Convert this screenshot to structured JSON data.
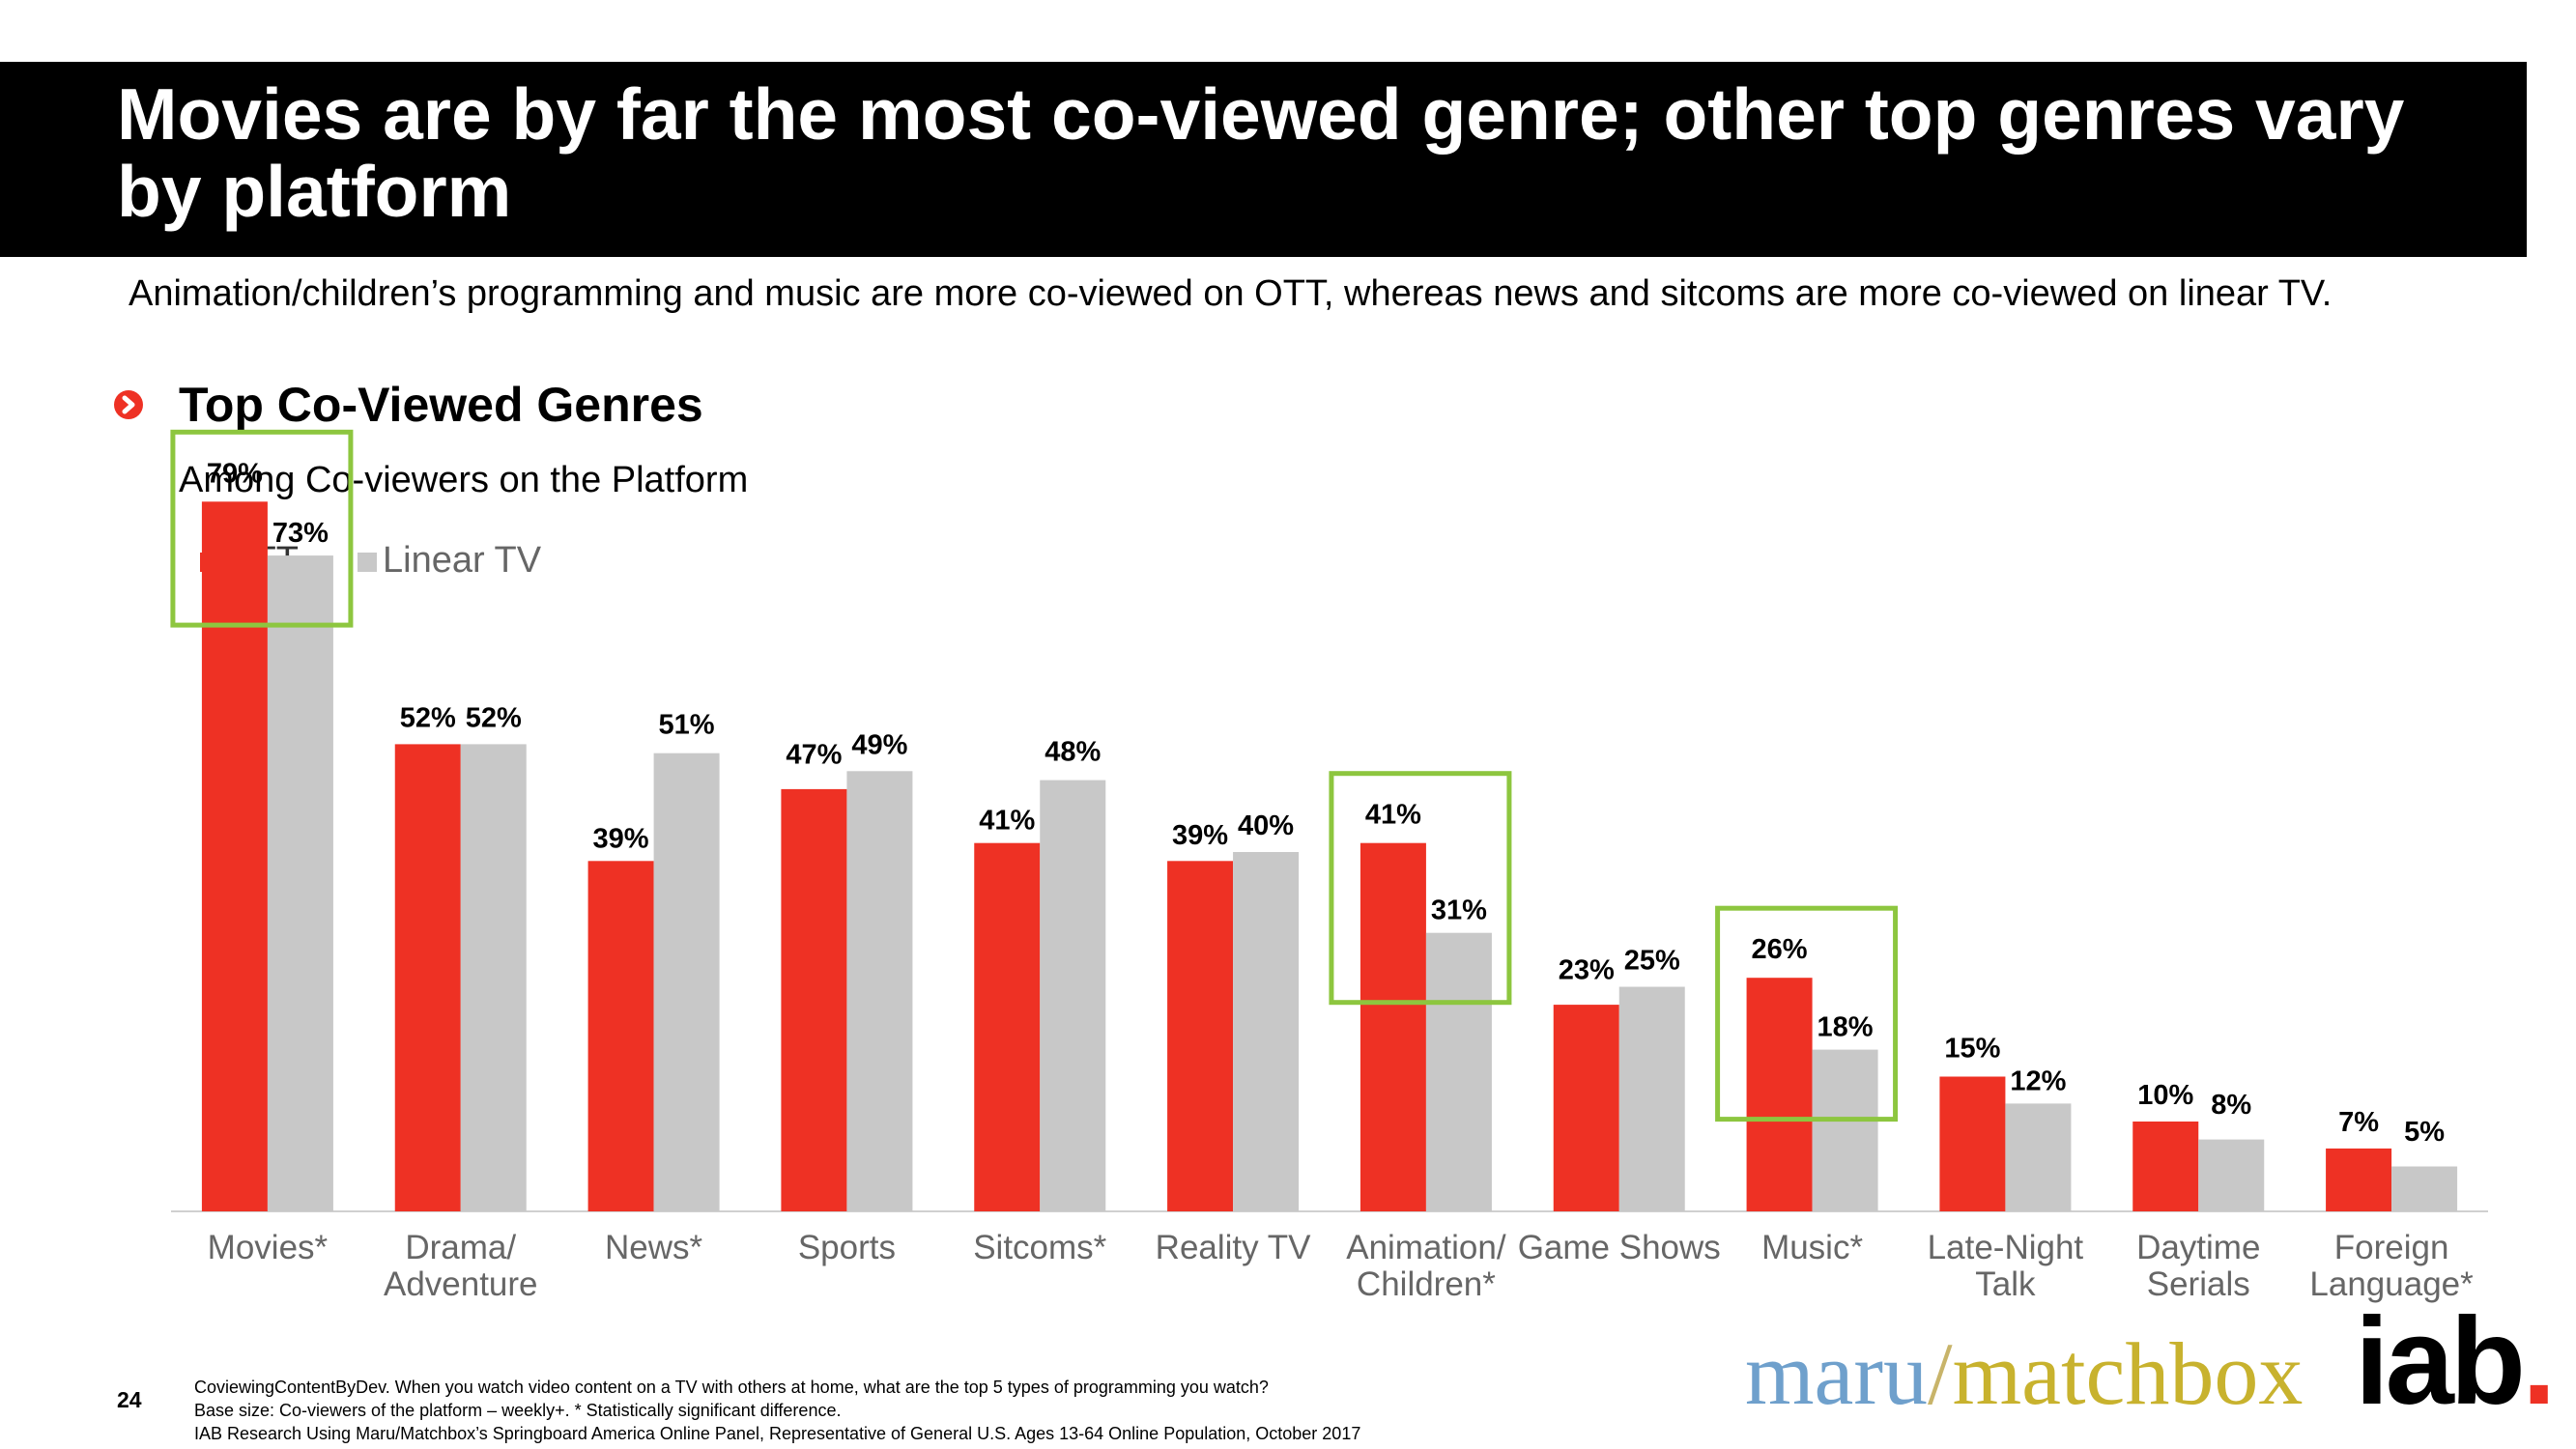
{
  "title": "Movies are by far the most co-viewed genre; other top genres vary by platform",
  "subtitle": "Animation/children’s programming and music are more co-viewed on OTT, whereas news and sitcoms are more co-viewed on linear TV.",
  "section": {
    "title": "Top Co-Viewed Genres",
    "subtitle": "Among Co-viewers on the Platform",
    "icon": "chevron-right-icon"
  },
  "colors": {
    "ott": "#ee3124",
    "linear": "#c8c8c8",
    "highlight": "#8dc63f"
  },
  "chart_data": {
    "type": "bar",
    "categories": [
      "Movies*",
      "Drama/\nAdventure",
      "News*",
      "Sports",
      "Sitcoms*",
      "Reality TV",
      "Animation/\nChildren*",
      "Game Shows",
      "Music*",
      "Late-Night\nTalk",
      "Daytime\nSerials",
      "Foreign\nLanguage*"
    ],
    "series": [
      {
        "name": "OTT",
        "values": [
          79,
          52,
          39,
          47,
          41,
          39,
          41,
          23,
          26,
          15,
          10,
          7
        ]
      },
      {
        "name": "Linear TV",
        "values": [
          73,
          52,
          51,
          49,
          48,
          40,
          31,
          25,
          18,
          12,
          8,
          5
        ]
      }
    ],
    "value_suffix": "%",
    "highlighted_categories": [
      "Movies*",
      "Animation/\nChildren*",
      "Music*"
    ],
    "ylim": [
      0,
      100
    ],
    "grid": false,
    "legend": "top-left"
  },
  "footnotes": {
    "page_number": "24",
    "lines": [
      "CoviewingContentByDev. When you watch video content on a TV with others at home, what are the top 5 types of programming you watch?",
      "Base size: Co-viewers of the platform – weekly+. * Statistically significant difference.",
      "IAB Research Using Maru/Matchbox’s Springboard America Online Panel, Representative of General U.S. Ages 13-64 Online Population, October 2017"
    ]
  },
  "logos": {
    "maru": "maru",
    "slash": "/",
    "matchbox": "matchbox",
    "iab": "iab",
    "iab_dot": "."
  }
}
